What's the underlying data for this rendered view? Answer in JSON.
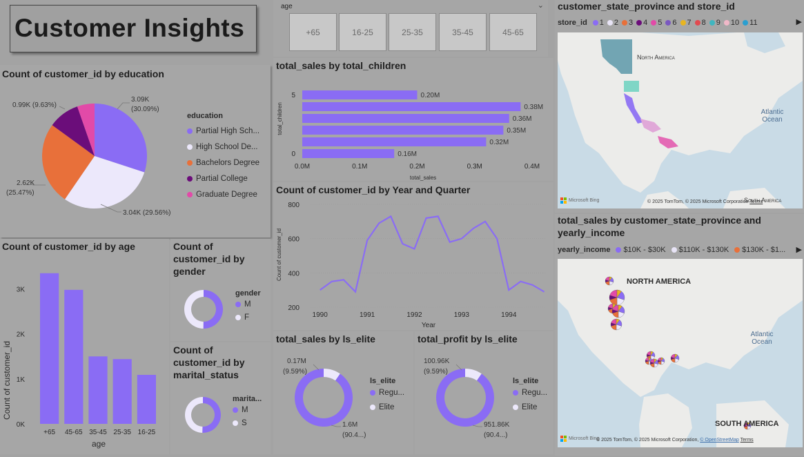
{
  "title": "Customer Insights",
  "colors": {
    "purple": "#8a6cf4",
    "lavender": "#ece8fb",
    "orange": "#e8703a",
    "darkpurple": "#6b0d7a",
    "pink": "#e24aa8"
  },
  "age_slicer": {
    "header": "age",
    "options": [
      "+65",
      "16-25",
      "25-35",
      "35-45",
      "45-65"
    ]
  },
  "education_chart": {
    "title": "Count of customer_id by education",
    "legend_title": "education",
    "chart_data": {
      "type": "pie",
      "categories": [
        "Partial High School",
        "High School Degree",
        "Bachelors Degree",
        "Partial College",
        "Graduate Degree"
      ],
      "values": [
        3090,
        3040,
        2620,
        990,
        550
      ],
      "labels_abs": [
        "3.09K",
        "3.04K",
        "2.62K",
        "0.99K",
        ""
      ],
      "labels_pct": [
        "(30.09%)",
        "(29.56%)",
        "(25.47%)",
        "(9.63%)",
        ""
      ]
    },
    "legend": [
      "Partial High Sch...",
      "High School De...",
      "Bachelors Degree",
      "Partial College",
      "Graduate Degree"
    ]
  },
  "age_chart": {
    "title": "Count of customer_id by age",
    "xlabel": "age",
    "ylabel": "Count of customer_id",
    "chart_data": {
      "type": "bar",
      "categories": [
        "+65",
        "45-65",
        "35-45",
        "25-35",
        "16-25"
      ],
      "values": [
        3350,
        2980,
        1500,
        1440,
        1090
      ],
      "ylim": [
        0,
        3500
      ],
      "yticks": [
        0,
        1000,
        2000,
        3000
      ],
      "ytick_labels": [
        "0K",
        "1K",
        "2K",
        "3K"
      ]
    }
  },
  "gender_chart": {
    "title": "Count of customer_id by gender",
    "legend_title": "gender",
    "legend": [
      "M",
      "F"
    ],
    "chart_data": {
      "type": "pie",
      "categories": [
        "M",
        "F"
      ],
      "values": [
        50.2,
        49.8
      ]
    }
  },
  "marital_chart": {
    "title": "Count of customer_id by marital_status",
    "legend_title": "marita...",
    "legend": [
      "M",
      "S"
    ],
    "chart_data": {
      "type": "pie",
      "categories": [
        "M",
        "S"
      ],
      "values": [
        50.5,
        49.5
      ]
    }
  },
  "children_chart": {
    "title": "total_sales by total_children",
    "xlabel": "total_sales",
    "ylabel": "total_children",
    "chart_data": {
      "type": "bar",
      "orientation": "horizontal",
      "categories": [
        "5",
        "4",
        "3",
        "2",
        "1",
        "0"
      ],
      "values": [
        0.2,
        0.38,
        0.36,
        0.35,
        0.32,
        0.16
      ],
      "labels": [
        "0.20M",
        "0.38M",
        "0.36M",
        "0.35M",
        "0.32M",
        "0.16M"
      ],
      "xlim": [
        0,
        0.4
      ],
      "xticks": [
        "0.0M",
        "0.1M",
        "0.2M",
        "0.3M",
        "0.4M"
      ],
      "ytick_labels": [
        "5",
        "",
        "",
        "",
        "",
        "0"
      ]
    }
  },
  "year_chart": {
    "title": "Count of customer_id by Year and Quarter",
    "xlabel": "Year",
    "ylabel": "Count of customer_id",
    "chart_data": {
      "type": "line",
      "x": [
        1990.0,
        1990.25,
        1990.5,
        1990.75,
        1991.0,
        1991.25,
        1991.5,
        1991.75,
        1992.0,
        1992.25,
        1992.5,
        1992.75,
        1993.0,
        1993.25,
        1993.5,
        1993.75,
        1994.0,
        1994.25,
        1994.5,
        1994.75
      ],
      "values": [
        300,
        350,
        360,
        290,
        590,
        690,
        730,
        570,
        540,
        720,
        730,
        580,
        600,
        660,
        700,
        600,
        300,
        350,
        330,
        290
      ],
      "xlim": [
        1989.8,
        1994.8
      ],
      "ylim": [
        200,
        800
      ],
      "xticks": [
        1990,
        1991,
        1992,
        1993,
        1994
      ],
      "yticks": [
        200,
        400,
        600,
        800
      ]
    }
  },
  "elite_sales": {
    "title": "total_sales by ls_elite",
    "legend_title": "ls_elite",
    "legend": [
      "Regu...",
      "Elite"
    ],
    "chart_data": {
      "type": "pie",
      "categories": [
        "Regular",
        "Elite"
      ],
      "values": [
        90.41,
        9.59
      ],
      "labels": [
        "1.6M",
        "0.17M"
      ],
      "pcts": [
        "(90.4...)",
        "(9.59%)"
      ]
    }
  },
  "elite_profit": {
    "title": "total_profit by ls_elite",
    "legend_title": "ls_elite",
    "legend": [
      "Regu...",
      "Elite"
    ],
    "chart_data": {
      "type": "pie",
      "categories": [
        "Regular",
        "Elite"
      ],
      "values": [
        90.41,
        9.59
      ],
      "labels": [
        "951.86K",
        "100.96K"
      ],
      "pcts": [
        "(90.4...)",
        "(9.59%)"
      ]
    }
  },
  "map1": {
    "title": "customer_state_province and store_id",
    "legend_title": "store_id",
    "legend": [
      "1",
      "2",
      "3",
      "4",
      "5",
      "6",
      "7",
      "8",
      "9",
      "10",
      "11"
    ],
    "legend_colors": [
      "#8a6cf4",
      "#e8e4f6",
      "#e8703a",
      "#6b0d7a",
      "#e24aa8",
      "#7a58c0",
      "#e8b520",
      "#e24a50",
      "#3fb6c0",
      "#f0b8c8",
      "#2a9fd0"
    ],
    "label_na": "North America",
    "label_ocean": "Atlantic Ocean",
    "label_sa": "South America",
    "copyright": "© 2025 TomTom, © 2025 Microsoft Corporation",
    "terms": "Terms",
    "bing": "Microsoft Bing"
  },
  "map2": {
    "title": "total_sales by customer_state_province and yearly_income",
    "legend_title": "yearly_income",
    "legend": [
      "$10K - $30K",
      "$110K - $130K",
      "$130K - $1..."
    ],
    "legend_colors": [
      "#8a6cf4",
      "#e8e4f6",
      "#e8703a"
    ],
    "label_na": "NORTH AMERICA",
    "label_ocean": "Atlantic Ocean",
    "label_sa": "SOUTH AMERICA",
    "copyright": "© 2025 TomTom, © 2025 Microsoft Corporation,",
    "osm": "© OpenStreetMap",
    "terms": "Terms",
    "bing": "Microsoft Bing"
  }
}
